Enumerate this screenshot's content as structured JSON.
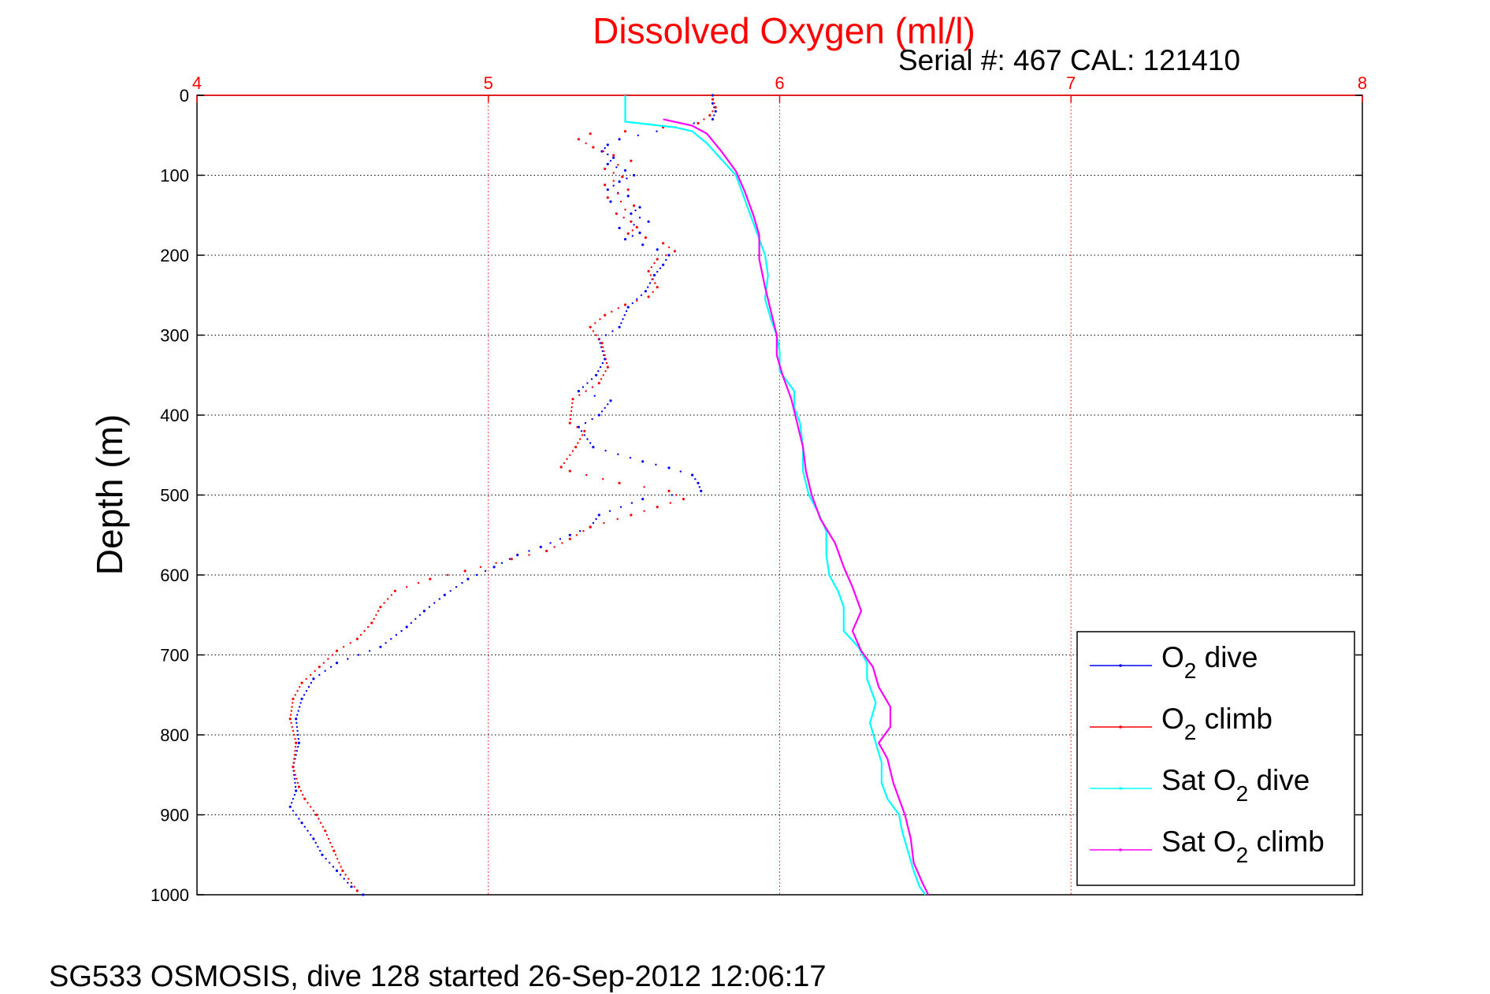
{
  "chart_data": {
    "type": "scatter",
    "title": "Dissolved Oxygen (ml/l)",
    "subtitle": "Serial #: 467  CAL: 121410",
    "ylabel": "Depth (m)",
    "xlabel": "",
    "xlim": [
      4,
      8
    ],
    "ylim": [
      0,
      1000
    ],
    "y_reversed": true,
    "x_axis_position": "top",
    "xticks": [
      "4",
      "5",
      "6",
      "7",
      "8"
    ],
    "yticks": [
      "0",
      "100",
      "200",
      "300",
      "400",
      "500",
      "600",
      "700",
      "800",
      "900",
      "1000"
    ],
    "grid": true,
    "legend_position": "bottom-right",
    "footer": "SG533 OSMOSIS, dive 128 started 26-Sep-2012 12:06:17",
    "series": [
      {
        "name": "O2 dive",
        "label_main": "O",
        "label_sub": "2",
        "label_rest": " dive",
        "color": "#0000ff",
        "style": "points",
        "points": [
          [
            5.77,
            0
          ],
          [
            5.77,
            10
          ],
          [
            5.78,
            20
          ],
          [
            5.77,
            30
          ],
          [
            5.45,
            55
          ],
          [
            5.41,
            62
          ],
          [
            5.39,
            70
          ],
          [
            5.43,
            78
          ],
          [
            5.41,
            86
          ],
          [
            5.47,
            94
          ],
          [
            5.5,
            100
          ],
          [
            5.45,
            108
          ],
          [
            5.41,
            118
          ],
          [
            5.48,
            126
          ],
          [
            5.42,
            133
          ],
          [
            5.52,
            140
          ],
          [
            5.49,
            148
          ],
          [
            5.55,
            158
          ],
          [
            5.45,
            166
          ],
          [
            5.52,
            172
          ],
          [
            5.47,
            180
          ],
          [
            5.53,
            187
          ],
          [
            5.58,
            193
          ],
          [
            5.62,
            200
          ],
          [
            5.6,
            212
          ],
          [
            5.57,
            225
          ],
          [
            5.54,
            245
          ],
          [
            5.48,
            265
          ],
          [
            5.45,
            290
          ],
          [
            5.38,
            305
          ],
          [
            5.4,
            330
          ],
          [
            5.37,
            350
          ],
          [
            5.31,
            370
          ],
          [
            5.42,
            382
          ],
          [
            5.38,
            400
          ],
          [
            5.31,
            415
          ],
          [
            5.36,
            440
          ],
          [
            5.53,
            458
          ],
          [
            5.62,
            466
          ],
          [
            5.7,
            475
          ],
          [
            5.72,
            485
          ],
          [
            5.73,
            495
          ],
          [
            5.53,
            505
          ],
          [
            5.38,
            525
          ],
          [
            5.35,
            540
          ],
          [
            5.28,
            550
          ],
          [
            5.18,
            565
          ],
          [
            5.1,
            575
          ],
          [
            5.02,
            590
          ],
          [
            4.93,
            605
          ],
          [
            4.85,
            625
          ],
          [
            4.78,
            645
          ],
          [
            4.72,
            665
          ],
          [
            4.63,
            690
          ],
          [
            4.48,
            710
          ],
          [
            4.4,
            730
          ],
          [
            4.36,
            755
          ],
          [
            4.34,
            780
          ],
          [
            4.35,
            810
          ],
          [
            4.33,
            840
          ],
          [
            4.34,
            870
          ],
          [
            4.32,
            890
          ],
          [
            4.36,
            910
          ],
          [
            4.4,
            930
          ],
          [
            4.43,
            950
          ],
          [
            4.48,
            970
          ],
          [
            4.53,
            990
          ],
          [
            4.57,
            1000
          ]
        ]
      },
      {
        "name": "O2 climb",
        "label_main": "O",
        "label_sub": "2",
        "label_rest": " climb",
        "color": "#ff0000",
        "style": "points",
        "points": [
          [
            5.77,
            5
          ],
          [
            5.78,
            15
          ],
          [
            5.76,
            25
          ],
          [
            5.72,
            35
          ],
          [
            5.6,
            40
          ],
          [
            5.47,
            45
          ],
          [
            5.35,
            48
          ],
          [
            5.31,
            55
          ],
          [
            5.36,
            65
          ],
          [
            5.43,
            75
          ],
          [
            5.49,
            82
          ],
          [
            5.4,
            92
          ],
          [
            5.46,
            102
          ],
          [
            5.4,
            112
          ],
          [
            5.48,
            118
          ],
          [
            5.41,
            128
          ],
          [
            5.5,
            138
          ],
          [
            5.44,
            148
          ],
          [
            5.49,
            158
          ],
          [
            5.51,
            165
          ],
          [
            5.48,
            173
          ],
          [
            5.54,
            178
          ],
          [
            5.6,
            185
          ],
          [
            5.64,
            195
          ],
          [
            5.58,
            205
          ],
          [
            5.55,
            220
          ],
          [
            5.58,
            240
          ],
          [
            5.55,
            252
          ],
          [
            5.47,
            262
          ],
          [
            5.4,
            275
          ],
          [
            5.35,
            290
          ],
          [
            5.39,
            310
          ],
          [
            5.41,
            340
          ],
          [
            5.38,
            360
          ],
          [
            5.29,
            380
          ],
          [
            5.28,
            410
          ],
          [
            5.33,
            420
          ],
          [
            5.3,
            440
          ],
          [
            5.25,
            465
          ],
          [
            5.28,
            470
          ],
          [
            5.45,
            485
          ],
          [
            5.62,
            495
          ],
          [
            5.67,
            505
          ],
          [
            5.58,
            515
          ],
          [
            5.49,
            525
          ],
          [
            5.35,
            540
          ],
          [
            5.28,
            555
          ],
          [
            5.2,
            570
          ],
          [
            5.08,
            580
          ],
          [
            4.92,
            595
          ],
          [
            4.8,
            605
          ],
          [
            4.68,
            620
          ],
          [
            4.63,
            640
          ],
          [
            4.6,
            660
          ],
          [
            4.55,
            680
          ],
          [
            4.48,
            695
          ],
          [
            4.42,
            715
          ],
          [
            4.36,
            735
          ],
          [
            4.33,
            755
          ],
          [
            4.32,
            780
          ],
          [
            4.34,
            810
          ],
          [
            4.33,
            840
          ],
          [
            4.35,
            865
          ],
          [
            4.37,
            880
          ],
          [
            4.41,
            900
          ],
          [
            4.44,
            920
          ],
          [
            4.47,
            945
          ],
          [
            4.5,
            970
          ],
          [
            4.55,
            995
          ]
        ]
      },
      {
        "name": "Sat O2 dive",
        "label_main": "Sat O",
        "label_sub": "2",
        "label_rest": " dive",
        "color": "#00ffff",
        "style": "line",
        "points": [
          [
            5.47,
            0
          ],
          [
            5.47,
            33
          ],
          [
            5.64,
            40
          ],
          [
            5.7,
            45
          ],
          [
            5.75,
            60
          ],
          [
            5.8,
            80
          ],
          [
            5.85,
            100
          ],
          [
            5.87,
            120
          ],
          [
            5.89,
            140
          ],
          [
            5.91,
            160
          ],
          [
            5.93,
            180
          ],
          [
            5.95,
            200
          ],
          [
            5.96,
            225
          ],
          [
            5.95,
            255
          ],
          [
            5.97,
            280
          ],
          [
            5.99,
            300
          ],
          [
            6.0,
            320
          ],
          [
            6.0,
            345
          ],
          [
            6.05,
            370
          ],
          [
            6.05,
            390
          ],
          [
            6.07,
            410
          ],
          [
            6.08,
            440
          ],
          [
            6.08,
            470
          ],
          [
            6.1,
            500
          ],
          [
            6.13,
            520
          ],
          [
            6.16,
            545
          ],
          [
            6.16,
            575
          ],
          [
            6.17,
            600
          ],
          [
            6.2,
            620
          ],
          [
            6.22,
            640
          ],
          [
            6.22,
            670
          ],
          [
            6.27,
            690
          ],
          [
            6.3,
            710
          ],
          [
            6.3,
            730
          ],
          [
            6.33,
            760
          ],
          [
            6.31,
            785
          ],
          [
            6.33,
            810
          ],
          [
            6.35,
            835
          ],
          [
            6.35,
            860
          ],
          [
            6.37,
            880
          ],
          [
            6.41,
            900
          ],
          [
            6.42,
            920
          ],
          [
            6.44,
            945
          ],
          [
            6.46,
            970
          ],
          [
            6.48,
            990
          ],
          [
            6.5,
            1000
          ]
        ]
      },
      {
        "name": "Sat O2 climb",
        "label_main": "Sat O",
        "label_sub": "2",
        "label_rest": " climb",
        "color": "#ff00ff",
        "style": "line",
        "points": [
          [
            5.6,
            30
          ],
          [
            5.7,
            38
          ],
          [
            5.75,
            48
          ],
          [
            5.8,
            70
          ],
          [
            5.85,
            95
          ],
          [
            5.88,
            120
          ],
          [
            5.91,
            150
          ],
          [
            5.93,
            175
          ],
          [
            5.93,
            205
          ],
          [
            5.95,
            240
          ],
          [
            5.97,
            270
          ],
          [
            5.99,
            300
          ],
          [
            5.99,
            325
          ],
          [
            6.01,
            350
          ],
          [
            6.04,
            380
          ],
          [
            6.06,
            410
          ],
          [
            6.08,
            440
          ],
          [
            6.09,
            470
          ],
          [
            6.11,
            500
          ],
          [
            6.14,
            530
          ],
          [
            6.19,
            560
          ],
          [
            6.22,
            590
          ],
          [
            6.25,
            615
          ],
          [
            6.28,
            645
          ],
          [
            6.25,
            670
          ],
          [
            6.28,
            695
          ],
          [
            6.32,
            715
          ],
          [
            6.34,
            740
          ],
          [
            6.38,
            765
          ],
          [
            6.38,
            790
          ],
          [
            6.34,
            810
          ],
          [
            6.37,
            830
          ],
          [
            6.39,
            860
          ],
          [
            6.41,
            880
          ],
          [
            6.43,
            900
          ],
          [
            6.45,
            930
          ],
          [
            6.46,
            960
          ],
          [
            6.49,
            985
          ],
          [
            6.51,
            1000
          ]
        ]
      }
    ]
  }
}
